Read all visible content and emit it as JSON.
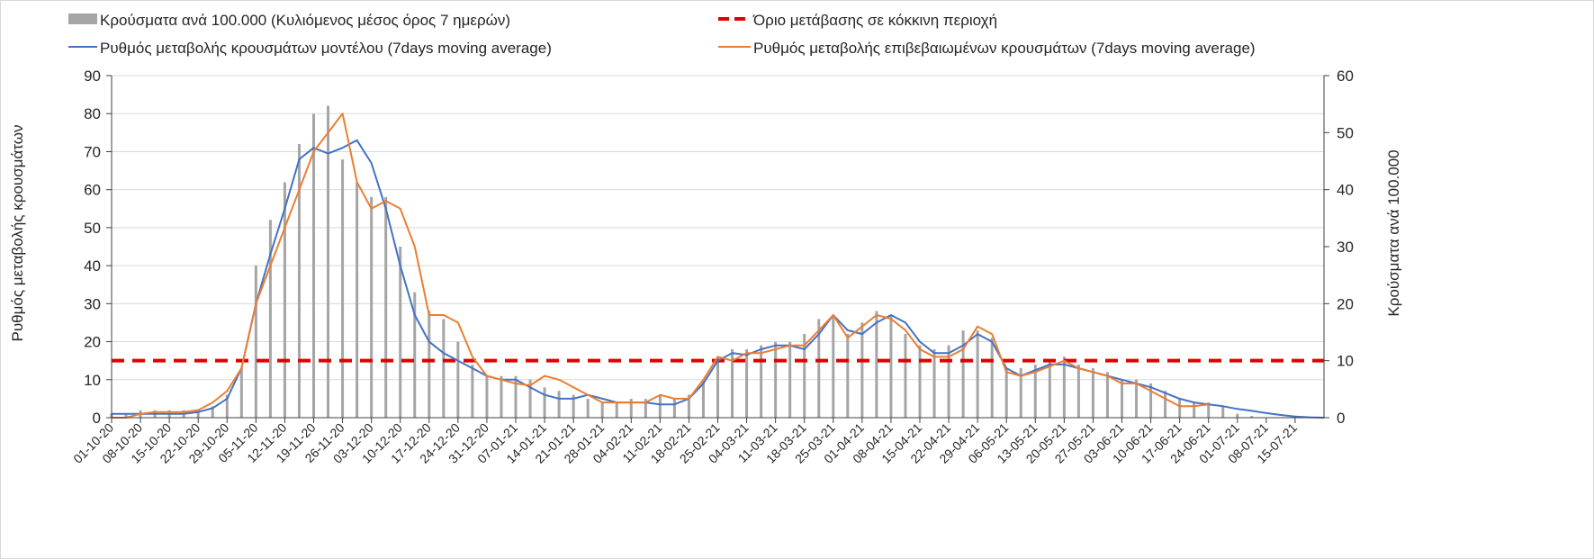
{
  "chart_data": {
    "type": "bar+line",
    "legend": {
      "bars": "Κρούσματα ανά 100.000 (Κυλιόμενος μέσος όρος 7 ημερών)",
      "threshold": "Όριο μετάβασης σε κόκκινη περιοχή",
      "model": "Ρυθμός μεταβολής κρουσμάτων μοντέλου (7days moving average)",
      "confirmed": "Ρυθμός μεταβολής επιβεβαιωμένων κρουσμάτων (7days moving average)"
    },
    "legend_placement": "top",
    "ylabel_left": "Ρυθμός μεταβολής κρουσμάτων",
    "ylabel_right": "Κρούσματα ανά 100.000",
    "ylim_left": [
      0,
      90
    ],
    "yticks_left": [
      "0",
      "10",
      "20",
      "30",
      "40",
      "50",
      "60",
      "70",
      "80",
      "90"
    ],
    "ylim_right": [
      0,
      60
    ],
    "yticks_right": [
      "0",
      "10",
      "20",
      "30",
      "40",
      "50",
      "60"
    ],
    "x_start": "01-10-20",
    "x_step_days": 3.5,
    "x_span_days": 294,
    "xtick_step_days": 7,
    "xticks": [
      "01-10-20",
      "08-10-20",
      "15-10-20",
      "22-10-20",
      "29-10-20",
      "05-11-20",
      "12-11-20",
      "19-11-20",
      "26-11-20",
      "03-12-20",
      "10-12-20",
      "17-12-20",
      "24-12-20",
      "31-12-20",
      "07-01-21",
      "14-01-21",
      "21-01-21",
      "28-01-21",
      "04-02-21",
      "11-02-21",
      "18-02-21",
      "25-02-21",
      "04-03-21",
      "11-03-21",
      "18-03-21",
      "25-03-21",
      "01-04-21",
      "08-04-21",
      "15-04-21",
      "22-04-21",
      "29-04-21",
      "06-05-21",
      "13-05-21",
      "20-05-21",
      "27-05-21",
      "03-06-21",
      "10-06-21",
      "17-06-21",
      "24-06-21",
      "01-07-21",
      "08-07-21",
      "15-07-21"
    ],
    "threshold_left": 15,
    "colors": {
      "bars": "#a5a5a5",
      "model": "#4472c4",
      "confirmed": "#ed7d31",
      "threshold": "#e00000",
      "grid": "#d9d9d9"
    },
    "series": [
      {
        "name": "cases_per_100k",
        "axis": "right",
        "values": [
          0.7,
          0.7,
          1.3,
          1.3,
          1.3,
          1.3,
          1.3,
          2,
          4,
          8.7,
          26.7,
          34.7,
          41.3,
          48,
          53.3,
          54.7,
          45.3,
          41.3,
          38.7,
          38.7,
          30,
          22,
          18.7,
          17.3,
          13.3,
          9.3,
          7.3,
          7.3,
          7.3,
          6.7,
          5.3,
          4.7,
          4,
          3.3,
          2.7,
          2.7,
          3.3,
          3.3,
          4,
          3.3,
          4,
          6.7,
          10.7,
          12,
          12,
          12.7,
          13.3,
          13.3,
          14.7,
          17.3,
          18,
          14.7,
          16.7,
          18.7,
          18,
          14.7,
          12.7,
          12,
          12.7,
          15.3,
          15.3,
          14,
          8.7,
          8.7,
          9.3,
          10,
          10.7,
          9.3,
          8.7,
          8,
          6.7,
          6.7,
          6,
          4.7,
          3.3,
          2.7,
          2.7,
          2,
          0.7,
          0.3
        ]
      },
      {
        "name": "model_rate",
        "axis": "left",
        "values": [
          1,
          1,
          1,
          1,
          1,
          1,
          1.5,
          2.5,
          5,
          13,
          30,
          43,
          55,
          68,
          71,
          69.5,
          71,
          73,
          67,
          55,
          40,
          27,
          20,
          17,
          15,
          13,
          11,
          10,
          10,
          8,
          6,
          5,
          5,
          6,
          5,
          4,
          4,
          4,
          3.5,
          3.5,
          5,
          9,
          15,
          17,
          16.5,
          18,
          19,
          19,
          18,
          22,
          27,
          23,
          22,
          25,
          27,
          25,
          20,
          17,
          17,
          19,
          22,
          20,
          13,
          11,
          12.5,
          14,
          14,
          13,
          12,
          11,
          10,
          9,
          8,
          6.5,
          5,
          4,
          3.5,
          3,
          2.3,
          1.8,
          1.2,
          0.7,
          0.3,
          0.1,
          0
        ]
      },
      {
        "name": "confirmed_rate",
        "axis": "left",
        "values": [
          0,
          0,
          1,
          1.5,
          1.5,
          1.5,
          2,
          4,
          7,
          13,
          30,
          40,
          50,
          60,
          70,
          75,
          80,
          62,
          55,
          57,
          55,
          45,
          27,
          27,
          25,
          16,
          11,
          10,
          9,
          8.5,
          11,
          10,
          8,
          6,
          4,
          4,
          4,
          4,
          6,
          5,
          5,
          10,
          16,
          15,
          17,
          17,
          18,
          19,
          19,
          23,
          27,
          21,
          24,
          27,
          26,
          23,
          18,
          16,
          16,
          18,
          24,
          22,
          12,
          11,
          12,
          13.5,
          15,
          13,
          12,
          11,
          9,
          9,
          7,
          5,
          3,
          3,
          3.5
        ]
      }
    ]
  }
}
